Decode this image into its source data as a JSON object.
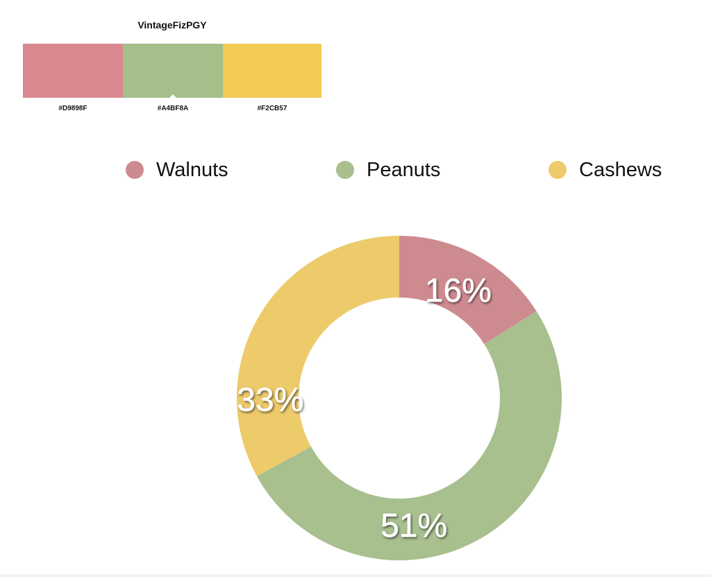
{
  "palette": {
    "name": "VintageFizPGY",
    "swatches": [
      {
        "hex": "#D9898F",
        "color": "#D9898F",
        "label": "#D9898F"
      },
      {
        "hex": "#A4BF8A",
        "color": "#A4BF8A",
        "label": "#A4BF8A",
        "selected": true
      },
      {
        "hex": "#F2CB57",
        "color": "#F2CB57",
        "label": "#F2CB57"
      }
    ]
  },
  "chart_data": {
    "type": "pie",
    "variant": "donut",
    "categories": [
      "Walnuts",
      "Peanuts",
      "Cashews"
    ],
    "values": [
      16,
      51,
      33
    ],
    "labels": [
      "16%",
      "51%",
      "33%"
    ],
    "colors": [
      "#CE8B8F",
      "#A8BF8E",
      "#EDCB6B"
    ],
    "legend_position": "top",
    "start_angle": "12 o'clock, clockwise"
  }
}
